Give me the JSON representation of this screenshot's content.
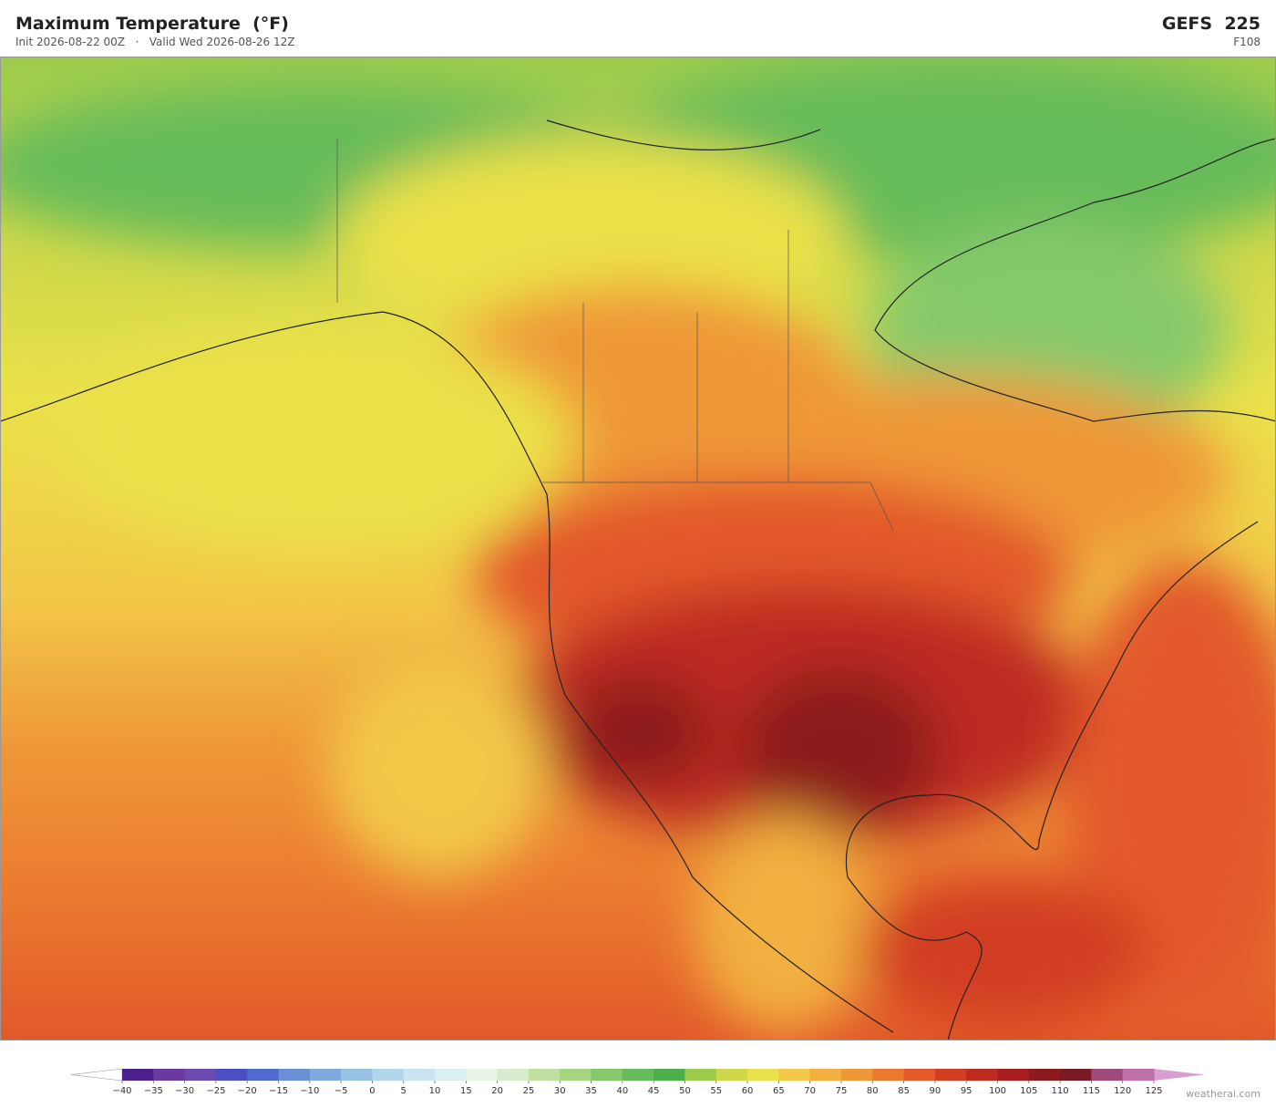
{
  "header": {
    "title": "Maximum Temperature  (°F)",
    "subtitle": "Init 2026-08-22 00Z   ·   Valid Wed 2026-08-26 12Z",
    "model": "GEFS  225",
    "forecast_hour": "F108"
  },
  "colorbar": {
    "labels": [
      "−40",
      "−35",
      "−30",
      "−25",
      "−20",
      "−15",
      "−10",
      "−5",
      "0",
      "5",
      "10",
      "15",
      "20",
      "25",
      "30",
      "35",
      "40",
      "45",
      "50",
      "55",
      "60",
      "65",
      "70",
      "75",
      "80",
      "85",
      "90",
      "95",
      "100",
      "105",
      "110",
      "115",
      "120",
      "125"
    ],
    "colors": [
      "#4b1f8c",
      "#6a3a9e",
      "#6b4bb0",
      "#4a4fc4",
      "#4f6bd0",
      "#6a8fd4",
      "#7faadc",
      "#98c3e4",
      "#b0d6ec",
      "#c9e6f0",
      "#dcf0f0",
      "#e8f5e6",
      "#d8eccc",
      "#bfe0a0",
      "#a3d67e",
      "#86c96a",
      "#66bb5a",
      "#4daf4a",
      "#9ccc4c",
      "#cfd84a",
      "#ebe14a",
      "#f2c848",
      "#f2b040",
      "#ef9838",
      "#eb7a30",
      "#e2592a",
      "#d23e24",
      "#bd2a20",
      "#a61e1e",
      "#8c1a1e",
      "#7a1a24",
      "#a04a7a",
      "#c070a8"
    ],
    "under_color": "#ffffff",
    "over_color": "#d8a0d0"
  },
  "watermark": "weatherai.com"
}
